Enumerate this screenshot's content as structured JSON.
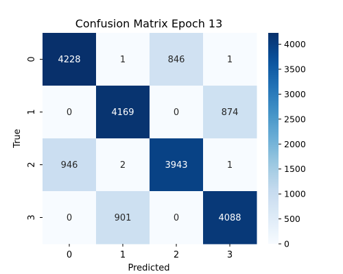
{
  "chart_data": {
    "type": "heatmap",
    "title": "Confusion Matrix Epoch 13",
    "xlabel": "Predicted",
    "ylabel": "True",
    "x_categories": [
      "0",
      "1",
      "2",
      "3"
    ],
    "y_categories": [
      "0",
      "1",
      "2",
      "3"
    ],
    "values": [
      [
        4228,
        1,
        846,
        1
      ],
      [
        0,
        4169,
        0,
        874
      ],
      [
        946,
        2,
        3943,
        1
      ],
      [
        0,
        901,
        0,
        4088
      ]
    ],
    "colormap": "Blues",
    "color_low": "#f7fbff",
    "color_high": "#08306b",
    "vmin": 0,
    "vmax": 4228,
    "colorbar_ticks": [
      "0",
      "500",
      "1000",
      "1500",
      "2000",
      "2500",
      "3000",
      "3500",
      "4000"
    ]
  }
}
